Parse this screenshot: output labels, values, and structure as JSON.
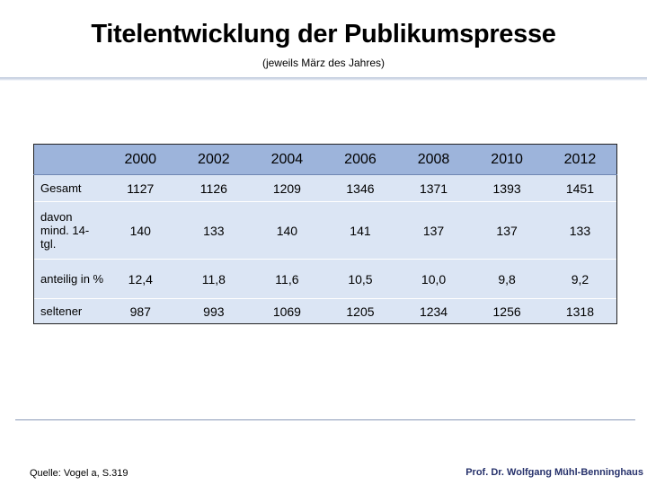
{
  "title": "Titelentwicklung der Publikumspresse",
  "subtitle": "(jeweils März des Jahres)",
  "table": {
    "header": [
      "",
      "2000",
      "2002",
      "2004",
      "2006",
      "2008",
      "2010",
      "2012"
    ],
    "rows": [
      {
        "label": "Gesamt",
        "values": [
          "1127",
          "1126",
          "1209",
          "1346",
          "1371",
          "1393",
          "1451"
        ]
      },
      {
        "label": "davon mind. 14-tgl.",
        "values": [
          "140",
          "133",
          "140",
          "141",
          "137",
          "137",
          "133"
        ]
      },
      {
        "label": "anteilig in %",
        "values": [
          "12,4",
          "11,8",
          "11,6",
          "10,5",
          "10,0",
          "9,8",
          "9,2"
        ]
      },
      {
        "label": "seltener",
        "values": [
          "987",
          "993",
          "1069",
          "1205",
          "1234",
          "1256",
          "1318"
        ]
      }
    ]
  },
  "footer": {
    "source": "Quelle: Vogel a, S.319",
    "author": "Prof. Dr. Wolfgang Mühl-Benninghaus"
  },
  "colors": {
    "header_fill": "#9db4db",
    "body_fill": "#dbe5f4",
    "author_text": "#26316b"
  }
}
